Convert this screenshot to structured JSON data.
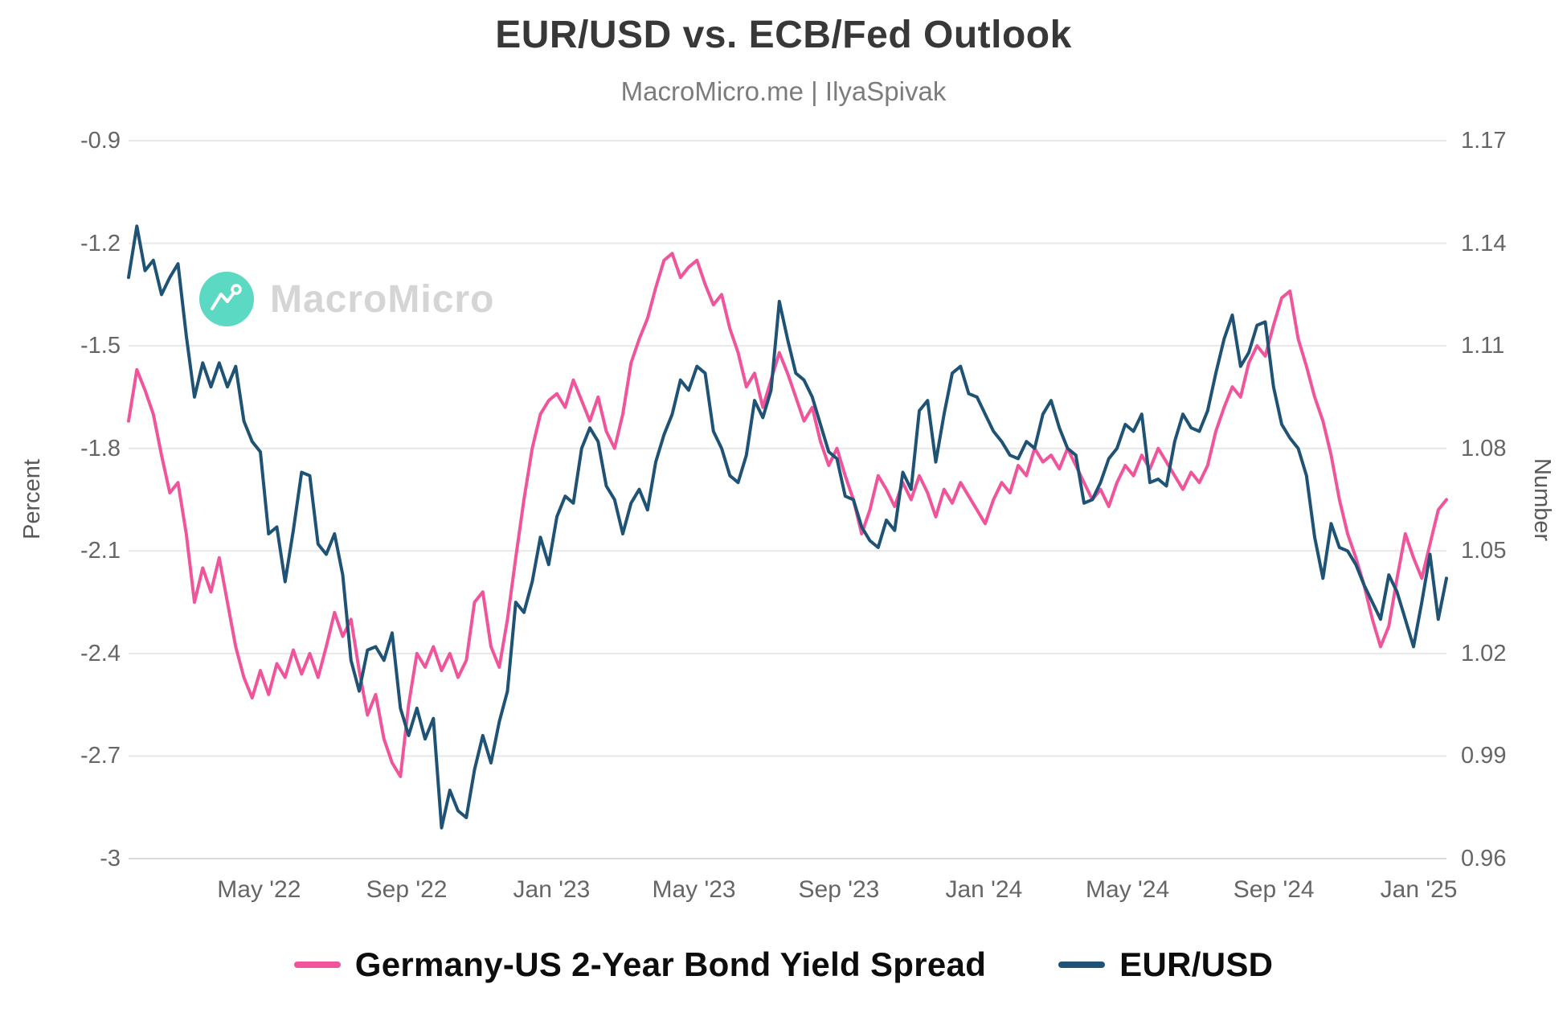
{
  "branding": {
    "watermark_text": "MacroMicro",
    "logo_color": "#5cd9c3"
  },
  "chart_data": {
    "type": "line",
    "title": "EUR/USD vs. ECB/Fed Outlook",
    "subtitle": "MacroMicro.me | IlyaSpivak",
    "grid": true,
    "legend_position": "bottom",
    "background_color": "#ffffff",
    "gridline_color": "#e8e8e8",
    "x_ticks": [
      {
        "label": "May '22",
        "pos": 0.099
      },
      {
        "label": "Sep '22",
        "pos": 0.211
      },
      {
        "label": "Jan '23",
        "pos": 0.321
      },
      {
        "label": "May '23",
        "pos": 0.429
      },
      {
        "label": "Sep '23",
        "pos": 0.539
      },
      {
        "label": "Jan '24",
        "pos": 0.649
      },
      {
        "label": "May '24",
        "pos": 0.758
      },
      {
        "label": "Sep '24",
        "pos": 0.869
      },
      {
        "label": "Jan '25",
        "pos": 0.979
      }
    ],
    "left_axis": {
      "label": "Percent",
      "max": -0.9,
      "min": -3,
      "tick_labels": [
        "-0.9",
        "-1.2",
        "-1.5",
        "-1.8",
        "-2.1",
        "-2.4",
        "-2.7",
        "-3"
      ]
    },
    "right_axis": {
      "label": "Number",
      "max": 1.17,
      "min": 0.96,
      "tick_labels": [
        "1.17",
        "1.14",
        "1.11",
        "1.08",
        "1.05",
        "1.02",
        "0.99",
        "0.96"
      ]
    },
    "x_range_note": "weekly points from mid-Jan 2022 to early Feb 2025",
    "series": [
      {
        "name": "Germany-US 2-Year Bond Yield Spread",
        "axis": "left",
        "color": "#f0549b",
        "values": [
          -1.72,
          -1.57,
          -1.63,
          -1.7,
          -1.82,
          -1.93,
          -1.9,
          -2.05,
          -2.25,
          -2.15,
          -2.22,
          -2.12,
          -2.25,
          -2.38,
          -2.47,
          -2.53,
          -2.45,
          -2.52,
          -2.43,
          -2.47,
          -2.39,
          -2.46,
          -2.4,
          -2.47,
          -2.38,
          -2.28,
          -2.35,
          -2.3,
          -2.45,
          -2.58,
          -2.52,
          -2.65,
          -2.72,
          -2.76,
          -2.55,
          -2.4,
          -2.44,
          -2.38,
          -2.45,
          -2.4,
          -2.47,
          -2.42,
          -2.25,
          -2.22,
          -2.38,
          -2.44,
          -2.3,
          -2.12,
          -1.95,
          -1.8,
          -1.7,
          -1.66,
          -1.64,
          -1.68,
          -1.6,
          -1.66,
          -1.72,
          -1.65,
          -1.75,
          -1.8,
          -1.7,
          -1.55,
          -1.48,
          -1.42,
          -1.33,
          -1.25,
          -1.23,
          -1.3,
          -1.27,
          -1.25,
          -1.32,
          -1.38,
          -1.35,
          -1.45,
          -1.52,
          -1.62,
          -1.58,
          -1.68,
          -1.6,
          -1.52,
          -1.58,
          -1.65,
          -1.72,
          -1.68,
          -1.78,
          -1.85,
          -1.8,
          -1.88,
          -1.95,
          -2.05,
          -1.98,
          -1.88,
          -1.92,
          -1.97,
          -1.9,
          -1.95,
          -1.88,
          -1.93,
          -2.0,
          -1.92,
          -1.96,
          -1.9,
          -1.94,
          -1.98,
          -2.02,
          -1.95,
          -1.9,
          -1.93,
          -1.85,
          -1.88,
          -1.8,
          -1.84,
          -1.82,
          -1.86,
          -1.8,
          -1.85,
          -1.9,
          -1.95,
          -1.92,
          -1.97,
          -1.9,
          -1.85,
          -1.88,
          -1.82,
          -1.86,
          -1.8,
          -1.84,
          -1.88,
          -1.92,
          -1.87,
          -1.9,
          -1.85,
          -1.75,
          -1.68,
          -1.62,
          -1.65,
          -1.55,
          -1.5,
          -1.53,
          -1.44,
          -1.36,
          -1.34,
          -1.48,
          -1.56,
          -1.65,
          -1.72,
          -1.82,
          -1.95,
          -2.05,
          -2.12,
          -2.2,
          -2.3,
          -2.38,
          -2.32,
          -2.18,
          -2.05,
          -2.12,
          -2.18,
          -2.08,
          -1.98,
          -1.95
        ]
      },
      {
        "name": "EUR/USD",
        "axis": "right",
        "color": "#1f5375",
        "values": [
          1.13,
          1.145,
          1.132,
          1.135,
          1.125,
          1.13,
          1.134,
          1.113,
          1.095,
          1.105,
          1.098,
          1.105,
          1.098,
          1.104,
          1.088,
          1.082,
          1.079,
          1.055,
          1.057,
          1.041,
          1.056,
          1.073,
          1.072,
          1.052,
          1.049,
          1.055,
          1.043,
          1.018,
          1.009,
          1.021,
          1.022,
          1.018,
          1.026,
          1.004,
          0.996,
          1.004,
          0.995,
          1.001,
          0.969,
          0.98,
          0.974,
          0.972,
          0.986,
          0.996,
          0.988,
          1.0,
          1.009,
          1.035,
          1.032,
          1.041,
          1.054,
          1.046,
          1.06,
          1.066,
          1.064,
          1.08,
          1.086,
          1.082,
          1.069,
          1.065,
          1.055,
          1.064,
          1.068,
          1.062,
          1.076,
          1.084,
          1.09,
          1.1,
          1.097,
          1.104,
          1.102,
          1.085,
          1.08,
          1.072,
          1.07,
          1.078,
          1.094,
          1.089,
          1.097,
          1.123,
          1.112,
          1.102,
          1.1,
          1.095,
          1.087,
          1.079,
          1.077,
          1.066,
          1.065,
          1.057,
          1.053,
          1.051,
          1.059,
          1.056,
          1.073,
          1.068,
          1.091,
          1.094,
          1.076,
          1.09,
          1.102,
          1.104,
          1.096,
          1.095,
          1.09,
          1.085,
          1.082,
          1.078,
          1.077,
          1.082,
          1.08,
          1.09,
          1.094,
          1.086,
          1.08,
          1.078,
          1.064,
          1.065,
          1.07,
          1.077,
          1.08,
          1.087,
          1.085,
          1.09,
          1.07,
          1.071,
          1.069,
          1.082,
          1.09,
          1.086,
          1.085,
          1.091,
          1.102,
          1.112,
          1.119,
          1.104,
          1.108,
          1.116,
          1.117,
          1.098,
          1.087,
          1.083,
          1.08,
          1.072,
          1.054,
          1.042,
          1.058,
          1.051,
          1.05,
          1.046,
          1.04,
          1.035,
          1.03,
          1.043,
          1.038,
          1.03,
          1.022,
          1.035,
          1.049,
          1.03,
          1.042
        ]
      }
    ]
  }
}
